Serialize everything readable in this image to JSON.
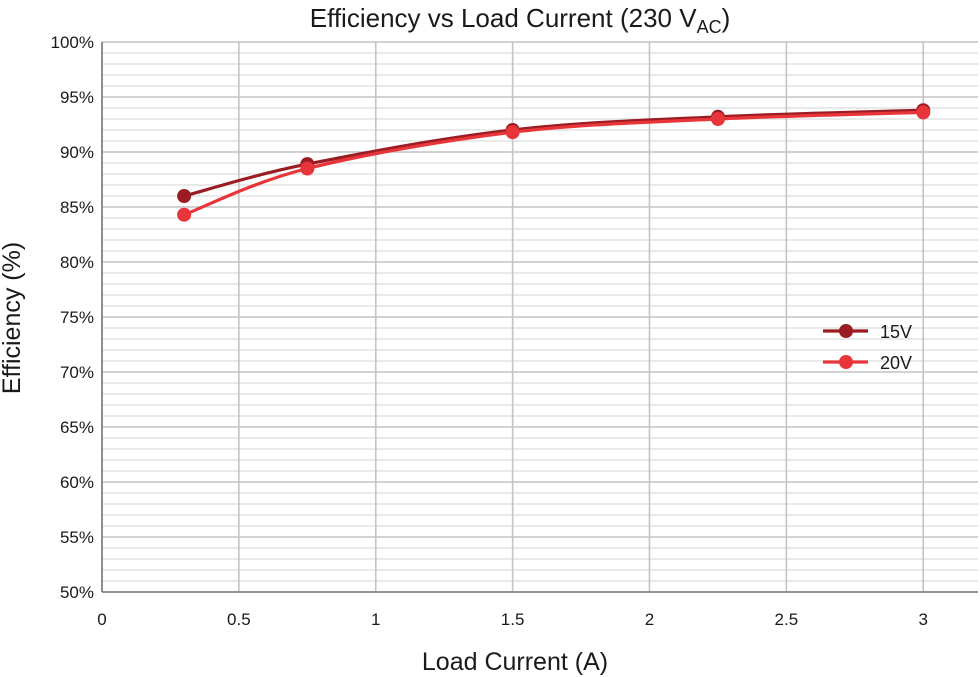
{
  "chart_data": {
    "type": "line",
    "title": "Efficiency vs Load Current (230 V",
    "title_subscript": "AC",
    "title_suffix": ")",
    "xlabel": "Load Current (A)",
    "ylabel": "Efficiency (%)",
    "xlim": [
      0,
      3.2
    ],
    "ylim": [
      50,
      100
    ],
    "x_ticks": [
      0,
      0.5,
      1,
      1.5,
      2,
      2.5,
      3
    ],
    "x_tick_labels": [
      "0",
      "0.5",
      "1",
      "1.5",
      "2",
      "2.5",
      "3"
    ],
    "y_ticks": [
      50,
      55,
      60,
      65,
      70,
      75,
      80,
      85,
      90,
      95,
      100
    ],
    "y_tick_labels": [
      "50%",
      "55%",
      "60%",
      "65%",
      "70%",
      "75%",
      "80%",
      "85%",
      "90%",
      "95%",
      "100%"
    ],
    "y_minor_step": 1,
    "grid": true,
    "legend_position": "right",
    "series": [
      {
        "name": "15V",
        "color": "#9b1c22",
        "x": [
          0.3,
          0.75,
          1.5,
          2.25,
          3
        ],
        "y": [
          86.0,
          88.9,
          92.0,
          93.2,
          93.8
        ]
      },
      {
        "name": "20V",
        "color": "#e8353a",
        "x": [
          0.3,
          0.75,
          1.5,
          2.25,
          3
        ],
        "y": [
          84.3,
          88.5,
          91.8,
          93.0,
          93.6
        ]
      }
    ]
  }
}
